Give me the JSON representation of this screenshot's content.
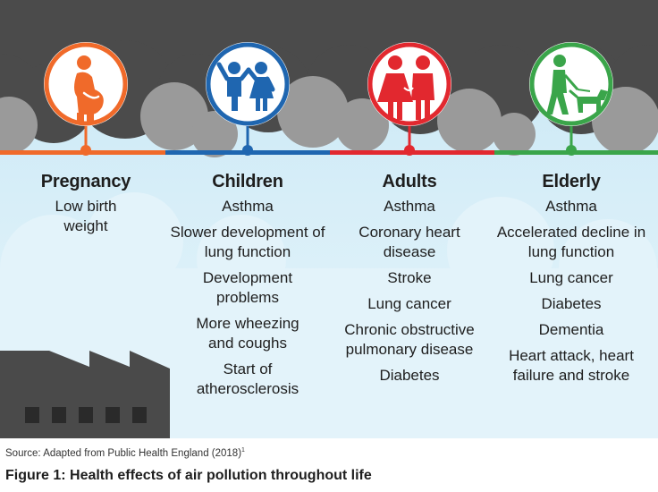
{
  "columns": [
    {
      "title": "Pregnancy",
      "color": "#f06a2a",
      "icon": "pregnant-woman-icon",
      "effects": [
        "Low birth weight"
      ]
    },
    {
      "title": "Children",
      "color": "#1f66b0",
      "icon": "children-icon",
      "effects": [
        "Asthma",
        "Slower development of lung function",
        "Development problems",
        "More wheezing and coughs",
        "Start of atherosclerosis"
      ]
    },
    {
      "title": "Adults",
      "color": "#e2282f",
      "icon": "adults-couple-icon",
      "effects": [
        "Asthma",
        "Coronary heart disease",
        "Stroke",
        "Lung cancer",
        "Chronic obstructive pulmonary disease",
        "Diabetes"
      ]
    },
    {
      "title": "Elderly",
      "color": "#3aa54a",
      "icon": "elderly-walking-dog-icon",
      "effects": [
        "Asthma",
        "Accelerated decline in lung function",
        "Lung cancer",
        "Diabetes",
        "Dementia",
        "Heart attack, heart failure and stroke"
      ]
    }
  ],
  "source": "Source: Adapted from Public Health England (2018)",
  "source_note": "1",
  "figure_title": "Figure 1: Health effects of air pollution throughout life",
  "colors": {
    "smoke_dark": "#4b4b4b",
    "smoke_light": "#9a9a9a",
    "sky": "#d3ecf7",
    "factory": "#4a4a4a"
  }
}
